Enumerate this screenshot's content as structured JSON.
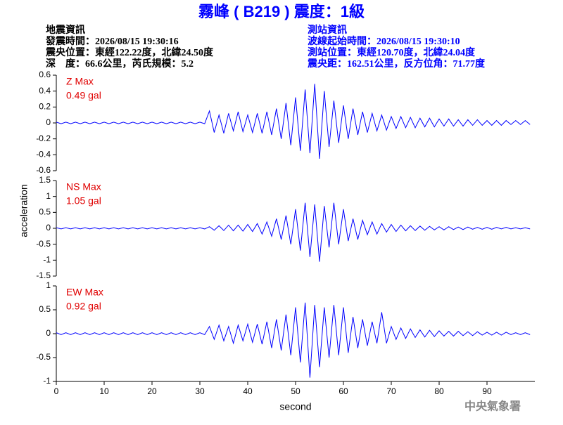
{
  "header": {
    "title": "霧峰 ( B219 ) 震度：1級",
    "left_lines": [
      "地震資訊",
      "發震時間：2026/08/15 19:30:16",
      "震央位置：東經122.22度，北緯24.50度",
      "深　度：66.6公里，芮氏規模：5.2"
    ],
    "right_lines": [
      "測站資訊",
      "波線起始時間：2026/08/15 19:30:10",
      "測站位置：東經120.70度，北緯24.04度",
      "震央距：162.51公里，反方位角：71.77度"
    ],
    "ylabel": "acceleration",
    "watermark": "中央氣象署"
  },
  "chart_data": [
    {
      "type": "line",
      "annotation": [
        "Z Max",
        "0.49 gal"
      ],
      "xlim": [
        0,
        100
      ],
      "ylim": [
        -0.6,
        0.6
      ],
      "yticks": [
        -0.6,
        -0.4,
        -0.2,
        0,
        0.2,
        0.4,
        0.6
      ],
      "x": [
        0,
        1,
        2,
        3,
        4,
        5,
        6,
        7,
        8,
        9,
        10,
        11,
        12,
        13,
        14,
        15,
        16,
        17,
        18,
        19,
        20,
        21,
        22,
        23,
        24,
        25,
        26,
        27,
        28,
        29,
        30,
        31,
        32,
        33,
        34,
        35,
        36,
        37,
        38,
        39,
        40,
        41,
        42,
        43,
        44,
        45,
        46,
        47,
        48,
        49,
        50,
        51,
        52,
        53,
        54,
        55,
        56,
        57,
        58,
        59,
        60,
        61,
        62,
        63,
        64,
        65,
        66,
        67,
        68,
        69,
        70,
        71,
        72,
        73,
        74,
        75,
        76,
        77,
        78,
        79,
        80,
        81,
        82,
        83,
        84,
        85,
        86,
        87,
        88,
        89,
        90,
        91,
        92,
        93,
        94,
        95,
        96,
        97,
        98,
        99
      ],
      "series": [
        {
          "color": "#0000ff",
          "values": [
            0.01,
            -0.01,
            0.01,
            -0.01,
            0.01,
            -0.01,
            0.01,
            -0.01,
            0.01,
            -0.01,
            0.01,
            -0.01,
            0.01,
            -0.01,
            0.01,
            -0.01,
            0.01,
            -0.01,
            0.01,
            -0.01,
            0.01,
            -0.01,
            0.01,
            -0.01,
            0.01,
            -0.01,
            0.01,
            -0.01,
            0.01,
            -0.01,
            0.01,
            -0.01,
            0.15,
            -0.12,
            0.1,
            -0.13,
            0.12,
            -0.1,
            0.14,
            -0.11,
            0.1,
            -0.12,
            0.12,
            -0.13,
            0.14,
            -0.15,
            0.18,
            -0.2,
            0.25,
            -0.28,
            0.32,
            -0.35,
            0.42,
            -0.38,
            0.49,
            -0.45,
            0.4,
            -0.3,
            0.28,
            -0.25,
            0.22,
            -0.2,
            0.18,
            -0.15,
            0.14,
            -0.12,
            0.12,
            -0.1,
            0.1,
            -0.09,
            0.08,
            -0.07,
            0.08,
            -0.06,
            0.07,
            -0.06,
            0.06,
            -0.05,
            0.06,
            -0.05,
            0.05,
            -0.04,
            0.05,
            -0.04,
            0.04,
            -0.04,
            0.04,
            -0.03,
            0.04,
            -0.03,
            0.03,
            -0.03,
            0.03,
            -0.03,
            0.03,
            -0.02,
            0.03,
            -0.02,
            0.03,
            -0.02
          ]
        }
      ]
    },
    {
      "type": "line",
      "annotation": [
        "NS Max",
        "1.05 gal"
      ],
      "xlim": [
        0,
        100
      ],
      "ylim": [
        -1.5,
        1.5
      ],
      "yticks": [
        -1.5,
        -1,
        -0.5,
        0,
        0.5,
        1,
        1.5
      ],
      "x": [
        0,
        1,
        2,
        3,
        4,
        5,
        6,
        7,
        8,
        9,
        10,
        11,
        12,
        13,
        14,
        15,
        16,
        17,
        18,
        19,
        20,
        21,
        22,
        23,
        24,
        25,
        26,
        27,
        28,
        29,
        30,
        31,
        32,
        33,
        34,
        35,
        36,
        37,
        38,
        39,
        40,
        41,
        42,
        43,
        44,
        45,
        46,
        47,
        48,
        49,
        50,
        51,
        52,
        53,
        54,
        55,
        56,
        57,
        58,
        59,
        60,
        61,
        62,
        63,
        64,
        65,
        66,
        67,
        68,
        69,
        70,
        71,
        72,
        73,
        74,
        75,
        76,
        77,
        78,
        79,
        80,
        81,
        82,
        83,
        84,
        85,
        86,
        87,
        88,
        89,
        90,
        91,
        92,
        93,
        94,
        95,
        96,
        97,
        98,
        99
      ],
      "series": [
        {
          "color": "#0000ff",
          "values": [
            0.02,
            -0.02,
            0.02,
            -0.02,
            0.02,
            -0.02,
            0.02,
            -0.02,
            0.02,
            -0.02,
            0.02,
            -0.02,
            0.02,
            -0.02,
            0.02,
            -0.02,
            0.02,
            -0.02,
            0.02,
            -0.02,
            0.02,
            -0.02,
            0.02,
            -0.02,
            0.02,
            -0.02,
            0.02,
            -0.02,
            0.02,
            -0.02,
            0.02,
            -0.02,
            0.05,
            -0.06,
            0.08,
            -0.07,
            0.1,
            -0.08,
            0.1,
            -0.09,
            0.12,
            -0.1,
            0.15,
            -0.18,
            0.2,
            -0.25,
            0.3,
            -0.35,
            0.4,
            -0.5,
            0.6,
            -0.7,
            0.8,
            -0.9,
            0.75,
            -1.05,
            0.7,
            -0.6,
            0.8,
            -0.5,
            0.6,
            -0.4,
            0.3,
            -0.35,
            0.25,
            -0.2,
            0.2,
            -0.18,
            0.15,
            -0.12,
            0.12,
            -0.1,
            0.1,
            -0.08,
            0.08,
            -0.07,
            0.07,
            -0.06,
            0.06,
            -0.05,
            0.05,
            -0.05,
            0.05,
            -0.04,
            0.04,
            -0.04,
            0.04,
            -0.03,
            0.03,
            -0.03,
            0.03,
            -0.03,
            0.03,
            -0.02,
            0.03,
            -0.02,
            0.02,
            -0.02,
            0.02,
            -0.02
          ]
        }
      ]
    },
    {
      "type": "line",
      "annotation": [
        "EW Max",
        "0.92 gal"
      ],
      "xlim": [
        0,
        100
      ],
      "ylim": [
        -1,
        1
      ],
      "yticks": [
        -1,
        -0.5,
        0,
        0.5,
        1
      ],
      "xticks": [
        0,
        10,
        20,
        30,
        40,
        50,
        60,
        70,
        80,
        90
      ],
      "xlabel": "second",
      "x": [
        0,
        1,
        2,
        3,
        4,
        5,
        6,
        7,
        8,
        9,
        10,
        11,
        12,
        13,
        14,
        15,
        16,
        17,
        18,
        19,
        20,
        21,
        22,
        23,
        24,
        25,
        26,
        27,
        28,
        29,
        30,
        31,
        32,
        33,
        34,
        35,
        36,
        37,
        38,
        39,
        40,
        41,
        42,
        43,
        44,
        45,
        46,
        47,
        48,
        49,
        50,
        51,
        52,
        53,
        54,
        55,
        56,
        57,
        58,
        59,
        60,
        61,
        62,
        63,
        64,
        65,
        66,
        67,
        68,
        69,
        70,
        71,
        72,
        73,
        74,
        75,
        76,
        77,
        78,
        79,
        80,
        81,
        82,
        83,
        84,
        85,
        86,
        87,
        88,
        89,
        90,
        91,
        92,
        93,
        94,
        95,
        96,
        97,
        98,
        99
      ],
      "series": [
        {
          "color": "#0000ff",
          "values": [
            0.02,
            -0.02,
            0.02,
            -0.02,
            0.02,
            -0.02,
            0.02,
            -0.02,
            0.02,
            -0.02,
            0.02,
            -0.02,
            0.02,
            -0.02,
            0.02,
            -0.02,
            0.02,
            -0.02,
            0.02,
            -0.02,
            0.02,
            -0.02,
            0.02,
            -0.02,
            0.02,
            -0.02,
            0.02,
            -0.02,
            0.02,
            -0.02,
            0.02,
            -0.02,
            0.15,
            -0.12,
            0.18,
            -0.15,
            0.15,
            -0.2,
            0.18,
            -0.15,
            0.2,
            -0.18,
            0.2,
            -0.22,
            0.25,
            -0.3,
            0.3,
            -0.35,
            0.4,
            -0.45,
            0.55,
            -0.6,
            0.65,
            -0.92,
            0.6,
            -0.7,
            0.55,
            -0.5,
            0.6,
            -0.45,
            0.55,
            -0.4,
            0.35,
            -0.3,
            0.3,
            -0.25,
            0.25,
            -0.2,
            0.45,
            -0.2,
            0.15,
            -0.12,
            0.12,
            -0.1,
            0.1,
            -0.08,
            0.08,
            -0.07,
            0.07,
            -0.06,
            0.06,
            -0.05,
            0.05,
            -0.05,
            0.05,
            -0.04,
            0.04,
            -0.04,
            0.04,
            -0.03,
            0.03,
            -0.03,
            0.03,
            -0.03,
            0.03,
            -0.02,
            0.02,
            -0.02,
            0.02,
            -0.02
          ]
        }
      ]
    }
  ]
}
